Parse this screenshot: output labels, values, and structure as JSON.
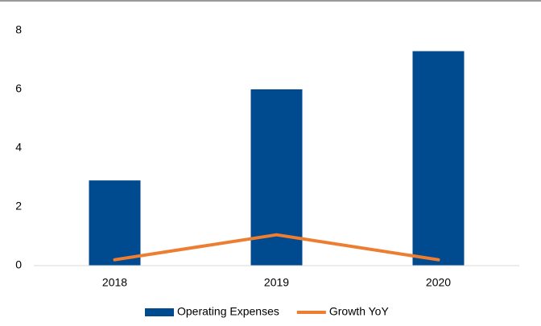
{
  "chart_data": {
    "type": "bar",
    "categories": [
      "2018",
      "2019",
      "2020"
    ],
    "series": [
      {
        "name": "Operating Expenses",
        "type": "bar",
        "color": "#004a8f",
        "values": [
          2.9,
          6.0,
          7.3
        ]
      },
      {
        "name": "Growth YoY",
        "type": "line",
        "color": "#ed7d31",
        "values": [
          0.2,
          1.05,
          0.2
        ]
      }
    ],
    "ylim": [
      0,
      8
    ],
    "yticks": [
      0,
      2,
      4,
      6,
      8
    ],
    "grid": false,
    "legend": "bottom"
  }
}
